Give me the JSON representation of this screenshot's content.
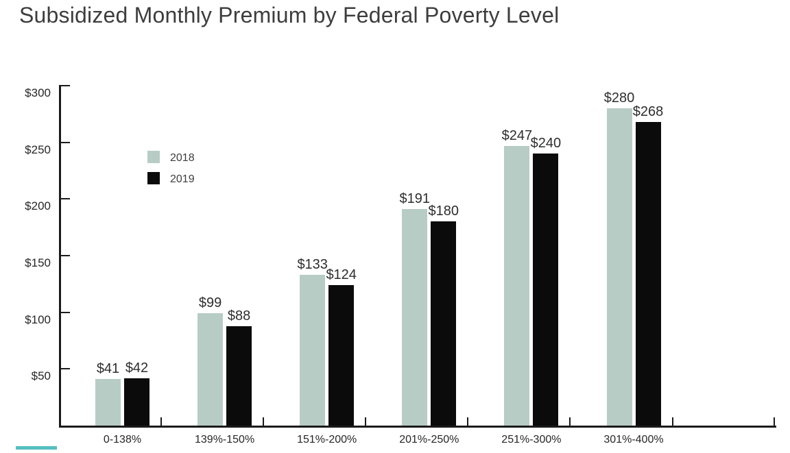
{
  "title": "Subsidized Monthly Premium by Federal Poverty Level",
  "colors": {
    "series_2018": "#b7ccc4",
    "series_2019": "#0b0b0b",
    "accent_teal": "#54bec0",
    "title_text": "#3d3d3d",
    "axis_text": "#262626",
    "axis_line": "#1a1a1a"
  },
  "legend": {
    "entries": [
      {
        "label": "2018",
        "color": "#b7ccc4"
      },
      {
        "label": "2019",
        "color": "#0b0b0b"
      }
    ],
    "position": "upper-left-inside"
  },
  "chart_data": {
    "type": "bar",
    "title": "Subsidized Monthly Premium by Federal Poverty Level",
    "categories": [
      "0-138%",
      "139%-150%",
      "151%-200%",
      "201%-250%",
      "251%-300%",
      "301%-400%"
    ],
    "series": [
      {
        "name": "2018",
        "color": "#b7ccc4",
        "values": [
          41,
          99,
          133,
          191,
          247,
          280
        ]
      },
      {
        "name": "2019",
        "color": "#0b0b0b",
        "values": [
          42,
          88,
          124,
          180,
          240,
          268
        ]
      }
    ],
    "value_prefix": "$",
    "xlabel": "",
    "ylabel": "",
    "y_tick_labels": [
      "$50",
      "$100",
      "$150",
      "$200",
      "$250",
      "$300"
    ],
    "y_tick_values": [
      50,
      100,
      150,
      200,
      250,
      300
    ],
    "ylim": [
      0,
      300
    ],
    "grid": false,
    "legend_position": "upper-left-inside",
    "value_labels_shown": true
  }
}
